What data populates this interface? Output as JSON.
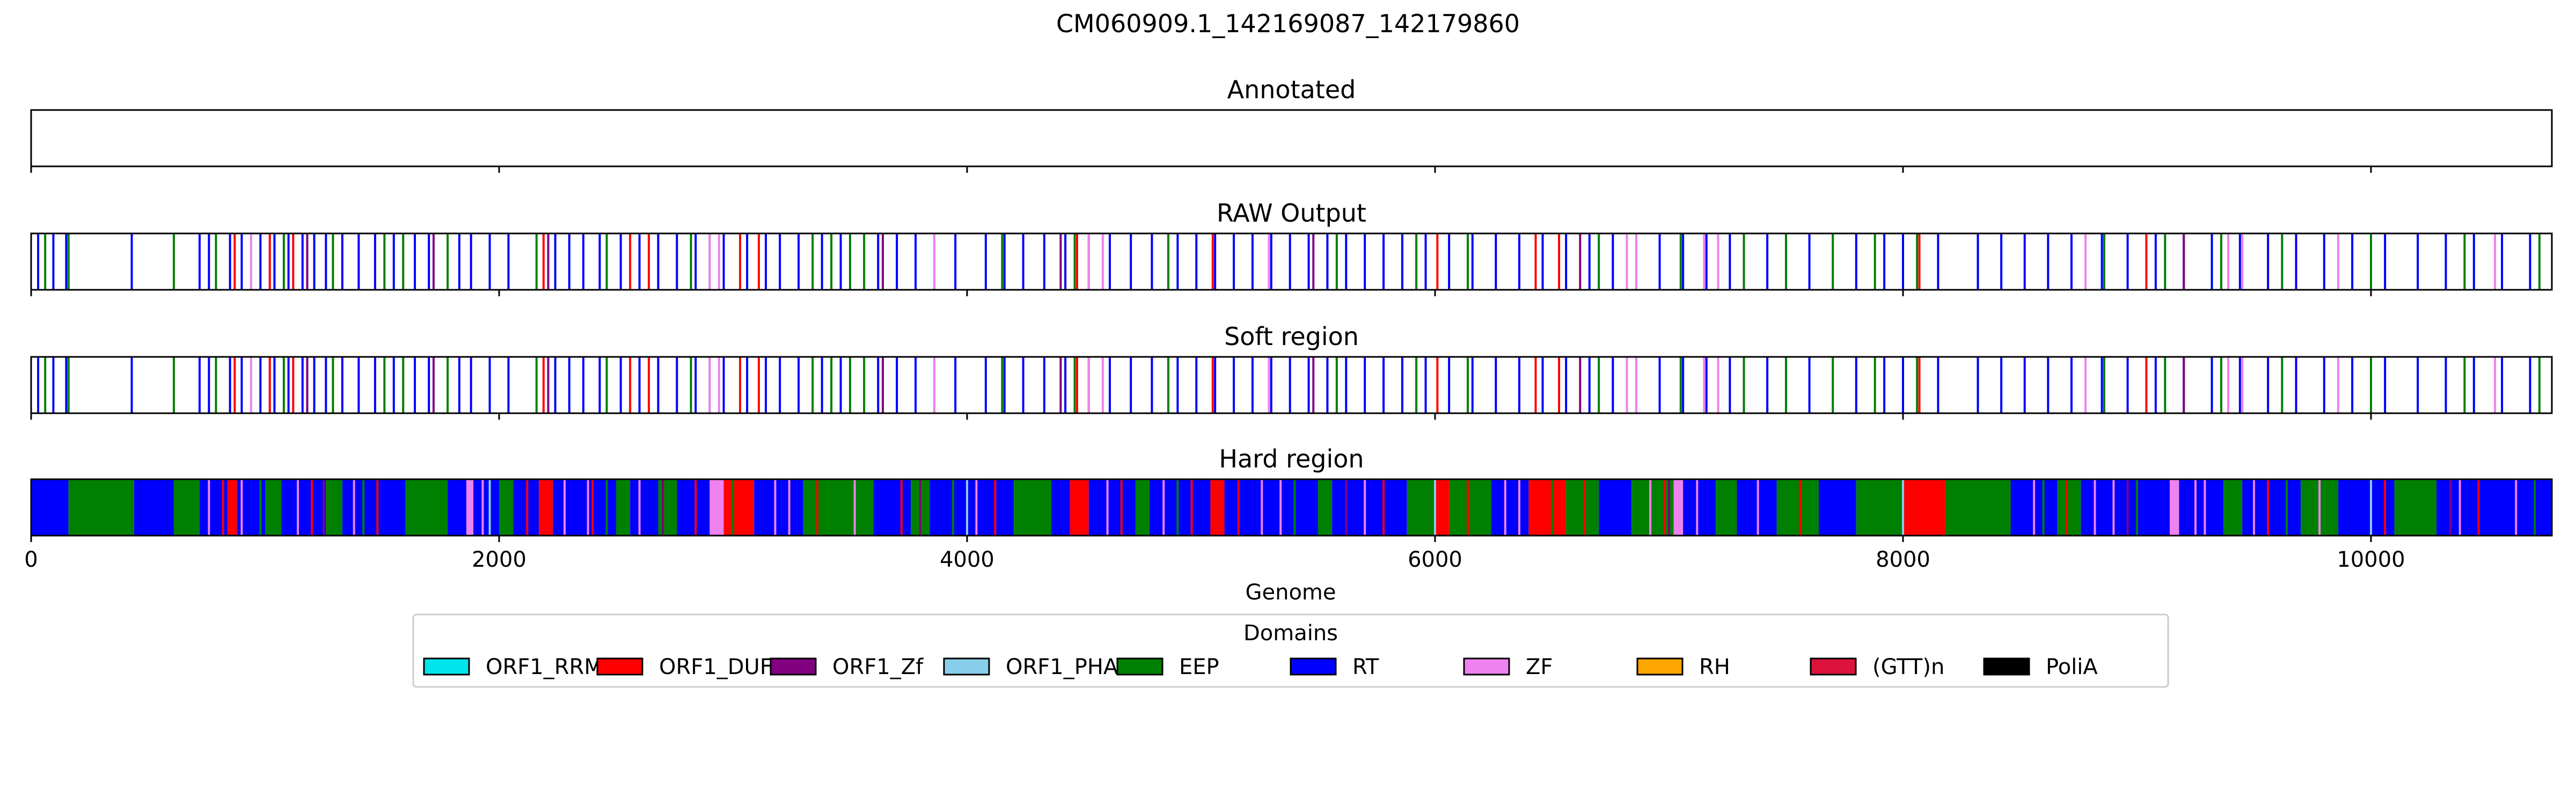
{
  "title": "CM060909.1_142169087_142179860",
  "xlabel": "Genome",
  "legend": {
    "title": "Domains",
    "placement": "bottom-center",
    "items": [
      {
        "name": "ORF1_RRM",
        "color": "#00e5ee"
      },
      {
        "name": "ORF1_DUF",
        "color": "#ff0000"
      },
      {
        "name": "ORF1_Zf",
        "color": "#800080"
      },
      {
        "name": "ORF1_PHA",
        "color": "#87ceeb"
      },
      {
        "name": "EEP",
        "color": "#008000"
      },
      {
        "name": "RT",
        "color": "#0000ff"
      },
      {
        "name": "ZF",
        "color": "#ee82ee"
      },
      {
        "name": "RH",
        "color": "#ffa500"
      },
      {
        "name": "(GTT)n",
        "color": "#dc143c"
      },
      {
        "name": "PoliA",
        "color": "#000000"
      }
    ]
  },
  "chart_data": {
    "type": "track",
    "xlim": [
      0,
      10773
    ],
    "xticks": [
      0,
      2000,
      4000,
      6000,
      8000,
      10000
    ],
    "tracks": [
      {
        "title": "Annotated",
        "kind": "empty",
        "segments": []
      },
      {
        "title": "RAW Output",
        "kind": "lines",
        "segments": [
          {
            "domain": "RT",
            "positions": [
              30,
              95,
              150,
              430,
              720,
              760,
              850,
              900,
              980,
              1040,
              1100,
              1160,
              1210,
              1260,
              1330,
              1400,
              1470,
              1550,
              1640,
              1700,
              1830,
              1880,
              1960,
              2040,
              2240,
              2300,
              2360,
              2430,
              2520,
              2600,
              2680,
              2760,
              2840,
              2960,
              3060,
              3140,
              3200,
              3280,
              3380,
              3460,
              3620,
              3700,
              3780,
              3860,
              3950,
              4080,
              4160,
              4240,
              4330,
              4420,
              4520,
              4610,
              4700,
              4790,
              4900,
              4980,
              5060,
              5140,
              5220,
              5300,
              5380,
              5460,
              5540,
              5620,
              5700,
              5780,
              5860,
              5960,
              6060,
              6160,
              6260,
              6360,
              6460,
              6560,
              6660,
              6760,
              6860,
              6960,
              7060,
              7160,
              7260,
              7420,
              7600,
              7800,
              7920,
              8000,
              8150,
              8320,
              8420,
              8520,
              8620,
              8720,
              8850,
              8960,
              9080,
              9200,
              9320,
              9440,
              9560,
              9680,
              9800,
              9920,
              10060,
              10200,
              10320,
              10440,
              10560,
              10680
            ]
          },
          {
            "domain": "EEP",
            "positions": [
              60,
              160,
              610,
              790,
              1080,
              1290,
              1510,
              1590,
              1780,
              2160,
              2460,
              2820,
              2900,
              3340,
              3420,
              3500,
              3560,
              4150,
              4460,
              4860,
              5580,
              5920,
              6140,
              6700,
              7050,
              7320,
              7500,
              7700,
              7880,
              8060,
              8860,
              9120,
              9360,
              9620,
              10000,
              10400,
              10720
            ]
          },
          {
            "domain": "ORF1_DUF",
            "positions": [
              870,
              1020,
              1120,
              2190,
              2560,
              2640,
              3030,
              3110,
              4470,
              5050,
              6010,
              6430,
              6530,
              8070,
              9040
            ]
          },
          {
            "domain": "ZF",
            "positions": [
              940,
              2900,
              2940,
              3860,
              4520,
              4580,
              5290,
              6820,
              6860,
              7150,
              7210,
              8780,
              9390,
              9450,
              9860,
              10530
            ]
          },
          {
            "domain": "ORF1_Zf",
            "positions": [
              1180,
              1720,
              2210,
              3640,
              4400,
              5480,
              6620,
              9200
            ]
          }
        ]
      },
      {
        "title": "Soft region",
        "kind": "lines",
        "segments": [
          {
            "domain": "RT",
            "positions": [
              30,
              95,
              150,
              430,
              720,
              760,
              850,
              900,
              980,
              1040,
              1100,
              1160,
              1210,
              1260,
              1330,
              1400,
              1470,
              1550,
              1640,
              1700,
              1830,
              1880,
              1960,
              2040,
              2240,
              2300,
              2360,
              2430,
              2520,
              2600,
              2680,
              2760,
              2840,
              2960,
              3060,
              3140,
              3200,
              3280,
              3380,
              3460,
              3620,
              3700,
              3780,
              3860,
              3950,
              4080,
              4160,
              4240,
              4330,
              4420,
              4520,
              4610,
              4700,
              4790,
              4900,
              4980,
              5060,
              5140,
              5220,
              5300,
              5380,
              5460,
              5540,
              5620,
              5700,
              5780,
              5860,
              5960,
              6060,
              6160,
              6260,
              6360,
              6460,
              6560,
              6660,
              6760,
              6860,
              6960,
              7060,
              7160,
              7260,
              7420,
              7600,
              7800,
              7920,
              8000,
              8150,
              8320,
              8420,
              8520,
              8620,
              8720,
              8850,
              8960,
              9080,
              9200,
              9320,
              9440,
              9560,
              9680,
              9800,
              9920,
              10060,
              10200,
              10320,
              10440,
              10560,
              10680
            ]
          },
          {
            "domain": "EEP",
            "positions": [
              60,
              160,
              610,
              790,
              1080,
              1290,
              1510,
              1590,
              1780,
              2160,
              2460,
              2820,
              2900,
              3340,
              3420,
              3500,
              3560,
              4150,
              4460,
              4860,
              5580,
              5920,
              6140,
              6700,
              7050,
              7320,
              7500,
              7700,
              7880,
              8060,
              8860,
              9120,
              9360,
              9620,
              10000,
              10400,
              10720
            ]
          },
          {
            "domain": "ORF1_DUF",
            "positions": [
              870,
              1020,
              1120,
              2190,
              2560,
              2640,
              3030,
              3110,
              4470,
              5050,
              6010,
              6430,
              6530,
              8070,
              9040
            ]
          },
          {
            "domain": "ZF",
            "positions": [
              940,
              2900,
              2940,
              3860,
              4520,
              4580,
              5290,
              6820,
              6860,
              7150,
              7210,
              8780,
              9390,
              9450,
              9860,
              10530
            ]
          },
          {
            "domain": "ORF1_Zf",
            "positions": [
              1180,
              1720,
              2210,
              3640,
              4400,
              5480,
              6620,
              9200
            ]
          }
        ]
      },
      {
        "title": "Hard region",
        "kind": "blocks",
        "segments": [
          {
            "domain": "RT",
            "start": 0,
            "end": 160
          },
          {
            "domain": "EEP",
            "start": 160,
            "end": 440
          },
          {
            "domain": "RT",
            "start": 440,
            "end": 610
          },
          {
            "domain": "EEP",
            "start": 610,
            "end": 720
          },
          {
            "domain": "RT",
            "start": 720,
            "end": 840
          },
          {
            "domain": "ORF1_DUF",
            "start": 840,
            "end": 880
          },
          {
            "domain": "RT",
            "start": 880,
            "end": 1000
          },
          {
            "domain": "EEP",
            "start": 1000,
            "end": 1070
          },
          {
            "domain": "RT",
            "start": 1070,
            "end": 1260
          },
          {
            "domain": "EEP",
            "start": 1260,
            "end": 1330
          },
          {
            "domain": "RT",
            "start": 1330,
            "end": 1600
          },
          {
            "domain": "EEP",
            "start": 1600,
            "end": 1780
          },
          {
            "domain": "RT",
            "start": 1780,
            "end": 1860
          },
          {
            "domain": "ZF",
            "start": 1860,
            "end": 1890
          },
          {
            "domain": "RT",
            "start": 1890,
            "end": 2000
          },
          {
            "domain": "EEP",
            "start": 2000,
            "end": 2060
          },
          {
            "domain": "RT",
            "start": 2060,
            "end": 2170
          },
          {
            "domain": "ORF1_DUF",
            "start": 2170,
            "end": 2230
          },
          {
            "domain": "RT",
            "start": 2230,
            "end": 2500
          },
          {
            "domain": "EEP",
            "start": 2500,
            "end": 2560
          },
          {
            "domain": "RT",
            "start": 2560,
            "end": 2680
          },
          {
            "domain": "EEP",
            "start": 2680,
            "end": 2760
          },
          {
            "domain": "RT",
            "start": 2760,
            "end": 2900
          },
          {
            "domain": "ZF",
            "start": 2900,
            "end": 2960
          },
          {
            "domain": "ORF1_DUF",
            "start": 2960,
            "end": 3090
          },
          {
            "domain": "RT",
            "start": 3090,
            "end": 3300
          },
          {
            "domain": "EEP",
            "start": 3300,
            "end": 3600
          },
          {
            "domain": "RT",
            "start": 3600,
            "end": 3760
          },
          {
            "domain": "EEP",
            "start": 3760,
            "end": 3840
          },
          {
            "domain": "RT",
            "start": 3840,
            "end": 4200
          },
          {
            "domain": "EEP",
            "start": 4200,
            "end": 4360
          },
          {
            "domain": "RT",
            "start": 4360,
            "end": 4440
          },
          {
            "domain": "ORF1_DUF",
            "start": 4440,
            "end": 4520
          },
          {
            "domain": "RT",
            "start": 4520,
            "end": 4720
          },
          {
            "domain": "EEP",
            "start": 4720,
            "end": 4780
          },
          {
            "domain": "RT",
            "start": 4780,
            "end": 5040
          },
          {
            "domain": "ORF1_DUF",
            "start": 5040,
            "end": 5100
          },
          {
            "domain": "RT",
            "start": 5100,
            "end": 5500
          },
          {
            "domain": "EEP",
            "start": 5500,
            "end": 5560
          },
          {
            "domain": "RT",
            "start": 5560,
            "end": 5880
          },
          {
            "domain": "EEP",
            "start": 5880,
            "end": 6000
          },
          {
            "domain": "ORF1_DUF",
            "start": 6000,
            "end": 6060
          },
          {
            "domain": "EEP",
            "start": 6060,
            "end": 6240
          },
          {
            "domain": "RT",
            "start": 6240,
            "end": 6400
          },
          {
            "domain": "ORF1_DUF",
            "start": 6400,
            "end": 6560
          },
          {
            "domain": "EEP",
            "start": 6560,
            "end": 6700
          },
          {
            "domain": "RT",
            "start": 6700,
            "end": 6840
          },
          {
            "domain": "EEP",
            "start": 6840,
            "end": 7020
          },
          {
            "domain": "ZF",
            "start": 7020,
            "end": 7060
          },
          {
            "domain": "RT",
            "start": 7060,
            "end": 7200
          },
          {
            "domain": "EEP",
            "start": 7200,
            "end": 7290
          },
          {
            "domain": "RT",
            "start": 7290,
            "end": 7460
          },
          {
            "domain": "EEP",
            "start": 7460,
            "end": 7640
          },
          {
            "domain": "RT",
            "start": 7640,
            "end": 7800
          },
          {
            "domain": "EEP",
            "start": 7800,
            "end": 8000
          },
          {
            "domain": "ORF1_DUF",
            "start": 8000,
            "end": 8180
          },
          {
            "domain": "EEP",
            "start": 8180,
            "end": 8460
          },
          {
            "domain": "RT",
            "start": 8460,
            "end": 8660
          },
          {
            "domain": "EEP",
            "start": 8660,
            "end": 8760
          },
          {
            "domain": "RT",
            "start": 8760,
            "end": 9140
          },
          {
            "domain": "ZF",
            "start": 9140,
            "end": 9180
          },
          {
            "domain": "RT",
            "start": 9180,
            "end": 9370
          },
          {
            "domain": "EEP",
            "start": 9370,
            "end": 9450
          },
          {
            "domain": "RT",
            "start": 9450,
            "end": 9700
          },
          {
            "domain": "EEP",
            "start": 9700,
            "end": 9860
          },
          {
            "domain": "RT",
            "start": 9860,
            "end": 10100
          },
          {
            "domain": "EEP",
            "start": 10100,
            "end": 10280
          },
          {
            "domain": "RT",
            "start": 10280,
            "end": 10773
          }
        ],
        "overlays": [
          {
            "domain": "ZF",
            "positions": [
              760,
              900,
              1140,
              1380,
              1930,
              2280,
              2380,
              2600,
              3180,
              3240,
              3520,
              4040,
              4600,
              4840,
              5260,
              5340,
              5700,
              6300,
              6360,
              6920,
              7120,
              7380,
              8560,
              8820,
              8900,
              9250,
              9290,
              9500,
              9780,
              10380,
              10620
            ]
          },
          {
            "domain": "ORF1_DUF",
            "positions": [
              820,
              1200,
              1480,
              2120,
              2400,
              2840,
              3360,
              3720,
              4120,
              4660,
              4960,
              5160,
              5780,
              6140,
              6640,
              6980,
              7560,
              8100,
              8700,
              9560,
              10060,
              10460
            ]
          },
          {
            "domain": "EEP",
            "positions": [
              980,
              1420,
              2460,
              3000,
              3940,
              4900,
              5400,
              5960,
              6500,
              7600,
              8600,
              9000,
              9640,
              10200,
              10700
            ]
          },
          {
            "domain": "ORF1_Zf",
            "positions": [
              1250,
              2700,
              3800,
              5620,
              7000,
              8960,
              10340
            ]
          },
          {
            "domain": "ORF1_PHA",
            "positions": [
              1960,
              4000,
              6000,
              8000,
              10000
            ]
          }
        ]
      }
    ]
  }
}
